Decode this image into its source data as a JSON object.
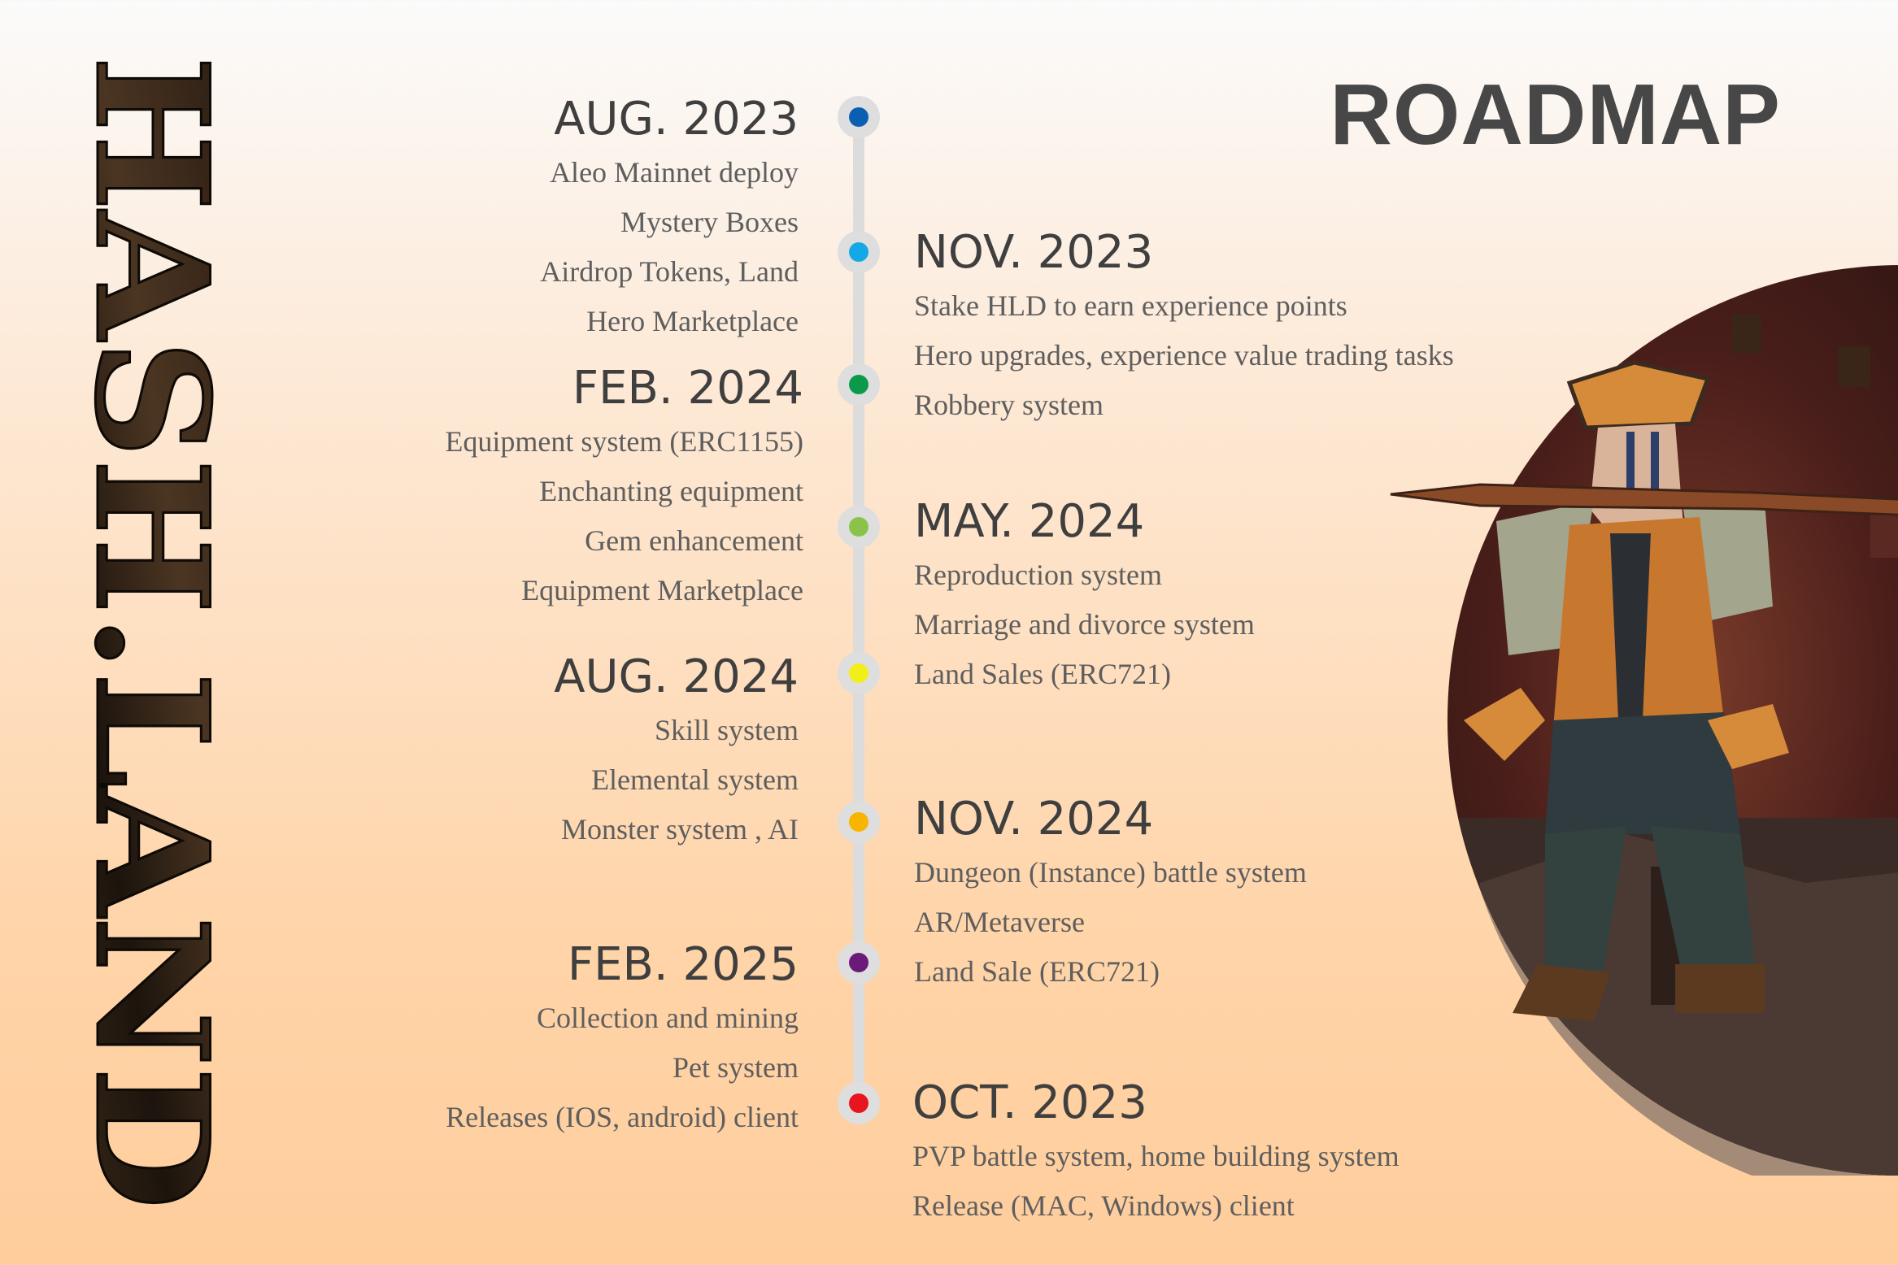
{
  "brand": {
    "text": "HASH.LAND"
  },
  "page": {
    "title": "ROADMAP"
  },
  "timeline": {
    "left": [
      {
        "date": "AUG. 2023",
        "color": "#0b5fb3",
        "items": [
          "Aleo Mainnet deploy",
          "Mystery Boxes ",
          "Airdrop Tokens, Land",
          "Hero Marketplace"
        ]
      },
      {
        "date": "FEB. 2024",
        "color": "#0a9a4a",
        "items": [
          "Equipment system (ERC1155)",
          "Enchanting equipment",
          "Gem enhancement",
          "Equipment Marketplace"
        ]
      },
      {
        "date": "AUG. 2024",
        "color": "#f2ee1a",
        "items": [
          "Skill system ",
          "Elemental system",
          "Monster system , AI"
        ]
      },
      {
        "date": "FEB. 2025",
        "color": "#6b1a7a",
        "items": [
          "Collection and mining",
          "Pet system",
          "Releases (IOS, android) client"
        ]
      }
    ],
    "right": [
      {
        "date": "NOV. 2023",
        "color": "#14a8e6",
        "items": [
          "Stake HLD to earn experience points",
          "Hero upgrades, experience value trading tasks",
          "Robbery system"
        ]
      },
      {
        "date": "MAY. 2024",
        "color": "#8bc34a",
        "items": [
          "Reproduction system",
          "Marriage and divorce system",
          "Land Sales (ERC721)"
        ]
      },
      {
        "date": "NOV. 2024",
        "color": "#f7b500",
        "items": [
          "Dungeon (Instance) battle system",
          "AR/Metaverse",
          "Land Sale (ERC721)"
        ]
      },
      {
        "date": "OCT. 2023",
        "color": "#e8141e",
        "items": [
          "PVP battle system, home building system",
          "Release (MAC, Windows) client"
        ]
      }
    ]
  }
}
